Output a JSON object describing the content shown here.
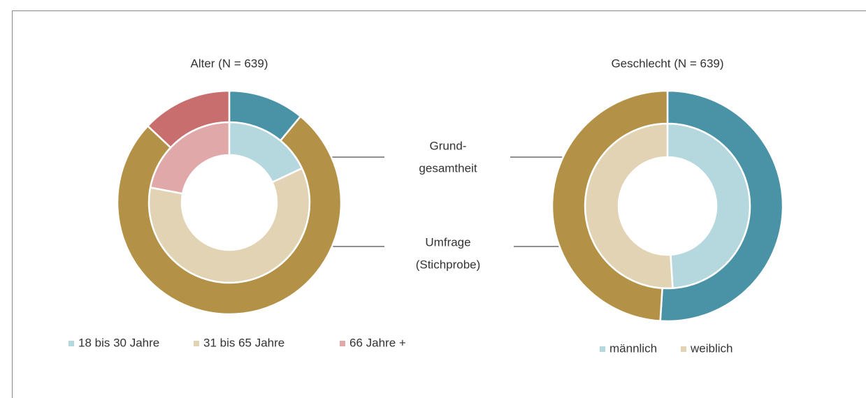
{
  "chart_data": [
    {
      "type": "donut",
      "title": "Alter (N = 639)",
      "categories": [
        "18 bis 30 Jahre",
        "31 bis 65 Jahre",
        "66 Jahre +"
      ],
      "series": [
        {
          "ring": "inner",
          "values": [
            18,
            60,
            22
          ],
          "colors": [
            "#b5d7de",
            "#e2d3b5",
            "#e0a8a8"
          ]
        },
        {
          "ring": "outer",
          "values": [
            11,
            76,
            13
          ],
          "colors": [
            "#4a93a6",
            "#b39146",
            "#c86e6e"
          ]
        }
      ]
    },
    {
      "type": "donut",
      "title": "Geschlecht (N = 639)",
      "categories": [
        "männlich",
        "weiblich"
      ],
      "series": [
        {
          "ring": "inner",
          "values": [
            49,
            51
          ],
          "colors": [
            "#b5d7de",
            "#e2d3b5"
          ]
        },
        {
          "ring": "outer",
          "values": [
            51,
            49
          ],
          "colors": [
            "#4a93a6",
            "#b39146"
          ]
        }
      ]
    }
  ],
  "annotations": [
    {
      "lines": [
        "Grund-",
        "gesamtheit"
      ]
    },
    {
      "lines": [
        "Umfrage",
        "(Stichprobe)"
      ]
    }
  ]
}
